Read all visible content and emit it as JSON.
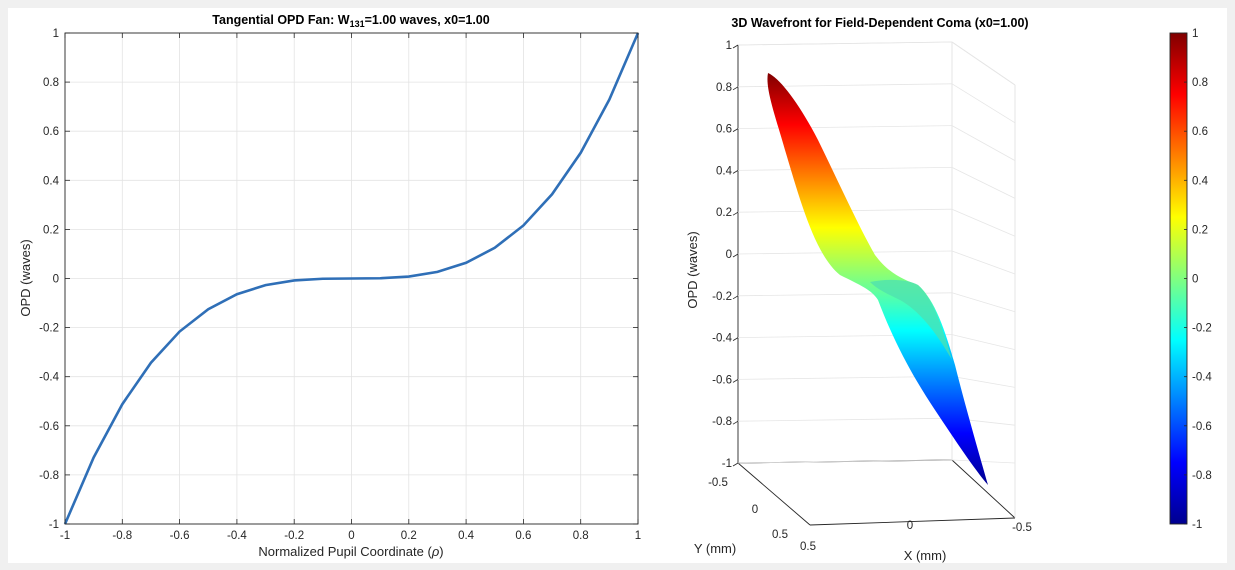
{
  "chart_data": [
    {
      "type": "line",
      "title": {
        "prefix": "Tangential  OPD  Fan:  W",
        "subscript": "131",
        "suffix": "=1.00  waves,  x0=1.00"
      },
      "xlabel": "Normalized  Pupil  Coordinate  (",
      "xlabel_symbol": "ρ",
      "xlabel_close": ")",
      "ylabel": "OPD (waves)",
      "xlim": [
        -1,
        1
      ],
      "ylim": [
        -1,
        1
      ],
      "grid": true,
      "xticks": [
        "-1",
        "-0.8",
        "-0.6",
        "-0.4",
        "-0.2",
        "0",
        "0.2",
        "0.4",
        "0.6",
        "0.8",
        "1"
      ],
      "yticks": [
        "-1",
        "-0.8",
        "-0.6",
        "-0.4",
        "-0.2",
        "0",
        "0.2",
        "0.4",
        "0.6",
        "0.8",
        "1"
      ],
      "series": [
        {
          "color": "#2f6fb7",
          "x": [
            -1,
            -0.9,
            -0.8,
            -0.7,
            -0.6,
            -0.5,
            -0.4,
            -0.3,
            -0.2,
            -0.1,
            0,
            0.1,
            0.2,
            0.3,
            0.4,
            0.5,
            0.6,
            0.7,
            0.8,
            0.9,
            1
          ],
          "y": [
            -1,
            -0.729,
            -0.512,
            -0.343,
            -0.216,
            -0.125,
            -0.064,
            -0.027,
            -0.008,
            -0.001,
            0,
            0.001,
            0.008,
            0.027,
            0.064,
            0.125,
            0.216,
            0.343,
            0.512,
            0.729,
            1
          ]
        }
      ]
    },
    {
      "type": "surface",
      "title": "3D Wavefront for Field-Dependent Coma (x0=1.00)",
      "zlabel": "OPD (waves)",
      "xlabel": "X (mm)",
      "ylabel": "Y (mm)",
      "zlim": [
        -1,
        1
      ],
      "xlim": [
        -0.5,
        0.5
      ],
      "ylim": [
        -0.5,
        0.5
      ],
      "colormap": "jet",
      "zticks": [
        "-1",
        "-0.8",
        "-0.6",
        "-0.4",
        "-0.2",
        "0",
        "0.2",
        "0.4",
        "0.6",
        "0.8",
        "1"
      ],
      "xticks": [
        "0.5",
        "0",
        "-0.5"
      ],
      "yticks": [
        "-0.5",
        "0",
        "0.5"
      ],
      "colorbar": {
        "ticks": [
          "-1",
          "-0.8",
          "-0.6",
          "-0.4",
          "-0.2",
          "0",
          "0.2",
          "0.4",
          "0.6",
          "0.8",
          "1"
        ],
        "range": [
          -1,
          1
        ]
      }
    }
  ]
}
